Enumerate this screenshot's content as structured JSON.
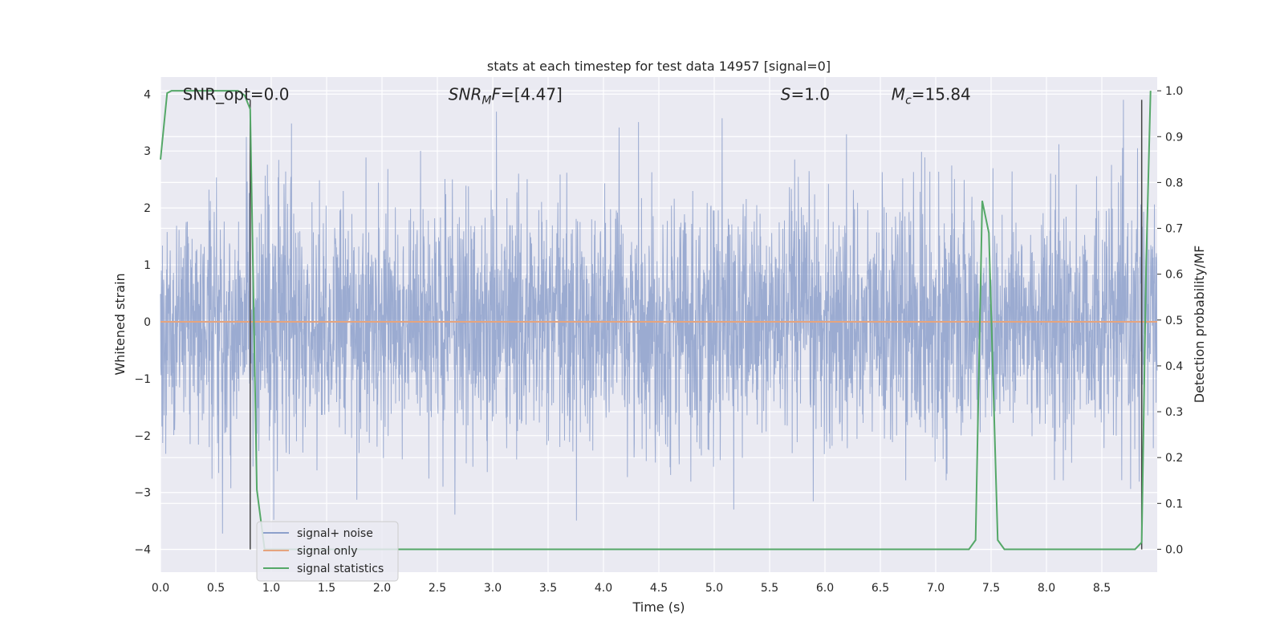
{
  "chart_data": {
    "type": "line",
    "title": "stats at each timestep for test data 14957 [signal=0]",
    "xlabel": "Time (s)",
    "ylabel": "Whitened strain",
    "y2label": "Detection probability/MF",
    "xlim": [
      0,
      9
    ],
    "ylim": [
      -4.4,
      4.3
    ],
    "y2lim": [
      -0.05,
      1.03
    ],
    "xticks": [
      "0.0",
      "0.5",
      "1.0",
      "1.5",
      "2.0",
      "2.5",
      "3.0",
      "3.5",
      "4.0",
      "4.5",
      "5.0",
      "5.5",
      "6.0",
      "6.5",
      "7.0",
      "7.5",
      "8.0",
      "8.5"
    ],
    "yticks": [
      "−4",
      "−3",
      "−2",
      "−1",
      "0",
      "1",
      "2",
      "3",
      "4"
    ],
    "y2ticks": [
      "0.0",
      "0.1",
      "0.2",
      "0.3",
      "0.4",
      "0.5",
      "0.6",
      "0.7",
      "0.8",
      "0.9",
      "1.0"
    ],
    "grid": true,
    "legend_placement": "lower-left",
    "annotations": [
      {
        "text": "SNR_opt=0.0",
        "x": 0.2,
        "y": 4.0
      },
      {
        "text": "SNR_MF=[4.47]",
        "x": 2.6,
        "y": 4.0
      },
      {
        "text": "S=1.0",
        "x": 5.6,
        "y": 4.0
      },
      {
        "text": "M_c=15.84",
        "x": 6.6,
        "y": 4.0
      }
    ],
    "vlines": [
      {
        "x": 0.81,
        "ymin": -4,
        "ymax": 3.9
      },
      {
        "x": 8.86,
        "ymin": -4,
        "ymax": 3.9
      }
    ],
    "series": [
      {
        "name": "signal+ noise",
        "color": "#8da0cb",
        "axis": "left",
        "kind": "noise",
        "note_range": [
          -3.8,
          3.9
        ]
      },
      {
        "name": "signal only",
        "color": "#e5a47f",
        "axis": "left",
        "x": [
          0,
          9
        ],
        "y": [
          0,
          0
        ]
      },
      {
        "name": "signal statistics",
        "color": "#55a868",
        "axis": "right",
        "x": [
          0,
          0.06,
          0.1,
          0.2,
          0.3,
          0.4,
          0.5,
          0.6,
          0.7,
          0.76,
          0.81,
          0.87,
          0.94,
          1.0,
          7.0,
          7.3,
          7.36,
          7.42,
          7.48,
          7.56,
          7.62,
          8.5,
          8.8,
          8.86,
          8.9,
          8.94
        ],
        "y": [
          0.85,
          0.995,
          1.0,
          1.0,
          1.0,
          1.0,
          1.0,
          1.0,
          1.0,
          0.99,
          0.96,
          0.13,
          0.0,
          0.0,
          0.0,
          0.0,
          0.02,
          0.76,
          0.69,
          0.02,
          0.0,
          0.0,
          0.0,
          0.015,
          0.62,
          1.0
        ]
      }
    ]
  },
  "legend": {
    "items": [
      {
        "label": "signal+ noise",
        "color": "#8da0cb"
      },
      {
        "label": "signal only",
        "color": "#e5a47f"
      },
      {
        "label": "signal statistics",
        "color": "#55a868"
      }
    ]
  }
}
